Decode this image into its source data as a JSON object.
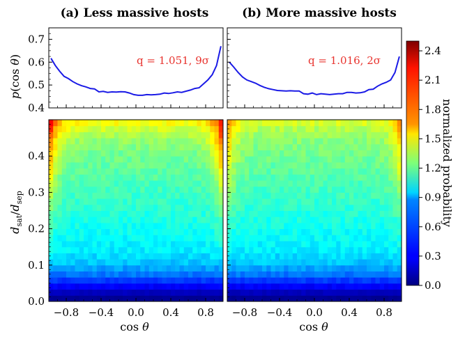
{
  "chart_data": [
    {
      "type": "line",
      "title": "(a) Less massive hosts",
      "ylabel": "p(cos θ)",
      "ylim": [
        0.4,
        0.75
      ],
      "yticks": [
        "0.4",
        "0.5",
        "0.6",
        "0.7"
      ],
      "annotation": "q = 1.051, 9σ",
      "series": [
        {
          "color": "#1a1ae6",
          "x": [
            -0.975,
            -0.925,
            -0.875,
            -0.825,
            -0.775,
            -0.725,
            -0.675,
            -0.625,
            -0.575,
            -0.525,
            -0.475,
            -0.425,
            -0.375,
            -0.325,
            -0.275,
            -0.225,
            -0.175,
            -0.125,
            -0.075,
            -0.025,
            0.025,
            0.075,
            0.125,
            0.175,
            0.225,
            0.275,
            0.325,
            0.375,
            0.425,
            0.475,
            0.525,
            0.575,
            0.625,
            0.675,
            0.725,
            0.775,
            0.825,
            0.875,
            0.925,
            0.975
          ],
          "y": [
            0.617,
            0.585,
            0.56,
            0.538,
            0.528,
            0.515,
            0.505,
            0.497,
            0.492,
            0.485,
            0.483,
            0.47,
            0.472,
            0.468,
            0.47,
            0.469,
            0.471,
            0.47,
            0.465,
            0.458,
            0.455,
            0.455,
            0.458,
            0.457,
            0.458,
            0.46,
            0.465,
            0.463,
            0.466,
            0.47,
            0.468,
            0.473,
            0.478,
            0.485,
            0.488,
            0.505,
            0.522,
            0.545,
            0.585,
            0.67
          ]
        }
      ],
      "heatmap": {
        "xlabel": "",
        "ylabel": "d_sat/d_sep",
        "xlim": [
          -1.0,
          1.0
        ],
        "ylim": [
          0.0,
          0.5
        ],
        "xticks": [
          "−0.8",
          "−0.4",
          "0.0",
          "0.4",
          "0.8"
        ],
        "yticks": [
          "0.0",
          "0.1",
          "0.2",
          "0.3",
          "0.4"
        ],
        "colormap": "jet",
        "vmin": 0.0,
        "vmax": 2.5,
        "description_values": {
          "radial_profile": [
            0.05,
            0.15,
            0.3,
            0.45,
            0.6,
            0.7,
            0.8,
            0.85,
            0.9,
            0.92,
            0.94,
            0.96,
            0.98,
            1.0,
            1.02,
            1.04,
            1.06,
            1.08,
            1.1,
            1.12,
            1.14,
            1.16,
            1.18,
            1.2,
            1.22,
            1.26,
            1.3,
            1.36,
            1.44,
            1.55
          ],
          "edge_peak": 2.3
        }
      }
    },
    {
      "type": "line",
      "title": "(b) More massive hosts",
      "ylim": [
        0.4,
        0.75
      ],
      "annotation": "q = 1.016, 2σ",
      "series": [
        {
          "color": "#1a1ae6",
          "x": [
            -0.975,
            -0.925,
            -0.875,
            -0.825,
            -0.775,
            -0.725,
            -0.675,
            -0.625,
            -0.575,
            -0.525,
            -0.475,
            -0.425,
            -0.375,
            -0.325,
            -0.275,
            -0.225,
            -0.175,
            -0.125,
            -0.075,
            -0.025,
            0.025,
            0.075,
            0.125,
            0.175,
            0.225,
            0.275,
            0.325,
            0.375,
            0.425,
            0.475,
            0.525,
            0.575,
            0.625,
            0.675,
            0.725,
            0.775,
            0.825,
            0.875,
            0.925,
            0.975
          ],
          "y": [
            0.6,
            0.578,
            0.555,
            0.535,
            0.522,
            0.515,
            0.508,
            0.498,
            0.49,
            0.484,
            0.48,
            0.476,
            0.475,
            0.474,
            0.475,
            0.474,
            0.474,
            0.462,
            0.46,
            0.465,
            0.458,
            0.462,
            0.46,
            0.458,
            0.46,
            0.462,
            0.462,
            0.468,
            0.468,
            0.465,
            0.466,
            0.47,
            0.48,
            0.482,
            0.495,
            0.505,
            0.512,
            0.522,
            0.555,
            0.625
          ]
        }
      ],
      "heatmap": {
        "xlabel": "cos θ",
        "xlim": [
          -1.0,
          1.0
        ],
        "ylim": [
          0.0,
          0.5
        ],
        "xticks": [
          "−0.8",
          "−0.4",
          "0.0",
          "0.4",
          "0.8"
        ],
        "colormap": "jet",
        "vmin": 0.0,
        "vmax": 2.5,
        "description_values": {
          "radial_profile": [
            0.05,
            0.15,
            0.3,
            0.45,
            0.6,
            0.7,
            0.8,
            0.85,
            0.9,
            0.92,
            0.94,
            0.96,
            0.98,
            1.0,
            1.02,
            1.04,
            1.06,
            1.08,
            1.1,
            1.12,
            1.14,
            1.16,
            1.18,
            1.2,
            1.22,
            1.24,
            1.27,
            1.31,
            1.37,
            1.45
          ],
          "edge_peak": 1.9
        }
      }
    }
  ],
  "colorbar": {
    "label": "normalized probability",
    "ticks": [
      "0.0",
      "0.3",
      "0.6",
      "0.9",
      "1.2",
      "1.5",
      "1.8",
      "2.1",
      "2.4"
    ],
    "tick_values": [
      0.0,
      0.3,
      0.6,
      0.9,
      1.2,
      1.5,
      1.8,
      2.1,
      2.4
    ],
    "vmin": 0.0,
    "vmax": 2.5
  },
  "labels": {
    "cos_theta": "cos θ",
    "p_cos": "p(cos θ)",
    "dratio": "d",
    "sat": "sat",
    "sep": "sep"
  }
}
